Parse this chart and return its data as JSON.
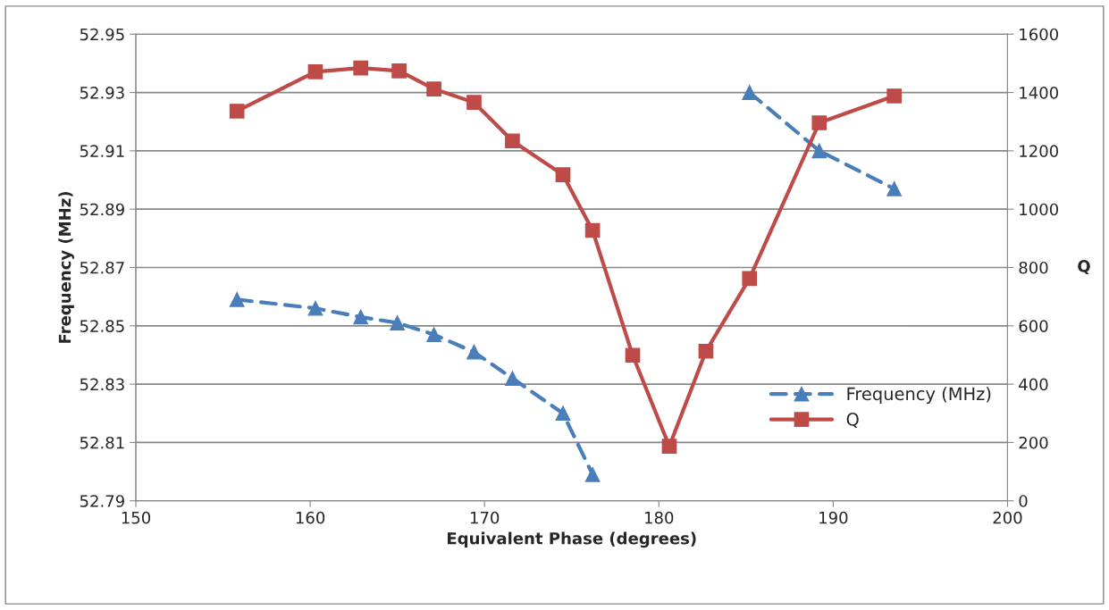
{
  "chart_data": {
    "type": "line",
    "xlabel": "Equivalent Phase (degrees)",
    "ylabel": "Frequency (MHz)",
    "y2label": "Q",
    "xlim": [
      150,
      200
    ],
    "xticks": [
      150,
      160,
      170,
      180,
      190,
      200
    ],
    "ylim": [
      52.79,
      52.95
    ],
    "yticks": [
      52.79,
      52.81,
      52.83,
      52.85,
      52.87,
      52.89,
      52.91,
      52.93,
      52.95
    ],
    "y2lim": [
      0,
      1600
    ],
    "y2ticks": [
      0,
      200,
      400,
      600,
      800,
      1000,
      1200,
      1400,
      1600
    ],
    "grid": "y",
    "legend": "lower right",
    "series": [
      {
        "name": "Frequency (MHz)",
        "color": "#4a7ebb",
        "marker": "triangle",
        "line_style": "dashed",
        "x": [
          155.8,
          160.3,
          162.9,
          165.0,
          167.1,
          169.4,
          171.6,
          174.5,
          176.2,
          178.5,
          180.6,
          182.7,
          185.2,
          189.2,
          193.5
        ],
        "values": [
          52.859,
          52.856,
          52.853,
          52.851,
          52.847,
          52.841,
          52.832,
          52.82,
          52.799,
          null,
          null,
          null,
          52.93,
          52.91,
          52.897
        ]
      },
      {
        "name": "Q",
        "color": "#be4b48",
        "marker": "square",
        "line_style": "solid",
        "axis": "y2",
        "x": [
          155.8,
          160.3,
          162.9,
          165.1,
          167.1,
          169.4,
          171.6,
          174.5,
          176.2,
          178.5,
          180.6,
          182.7,
          185.2,
          189.2,
          193.5
        ],
        "values": [
          1336,
          1471,
          1484,
          1474,
          1412,
          1366,
          1234,
          1118,
          927,
          499,
          187,
          513,
          762,
          1296,
          1388
        ]
      }
    ]
  }
}
